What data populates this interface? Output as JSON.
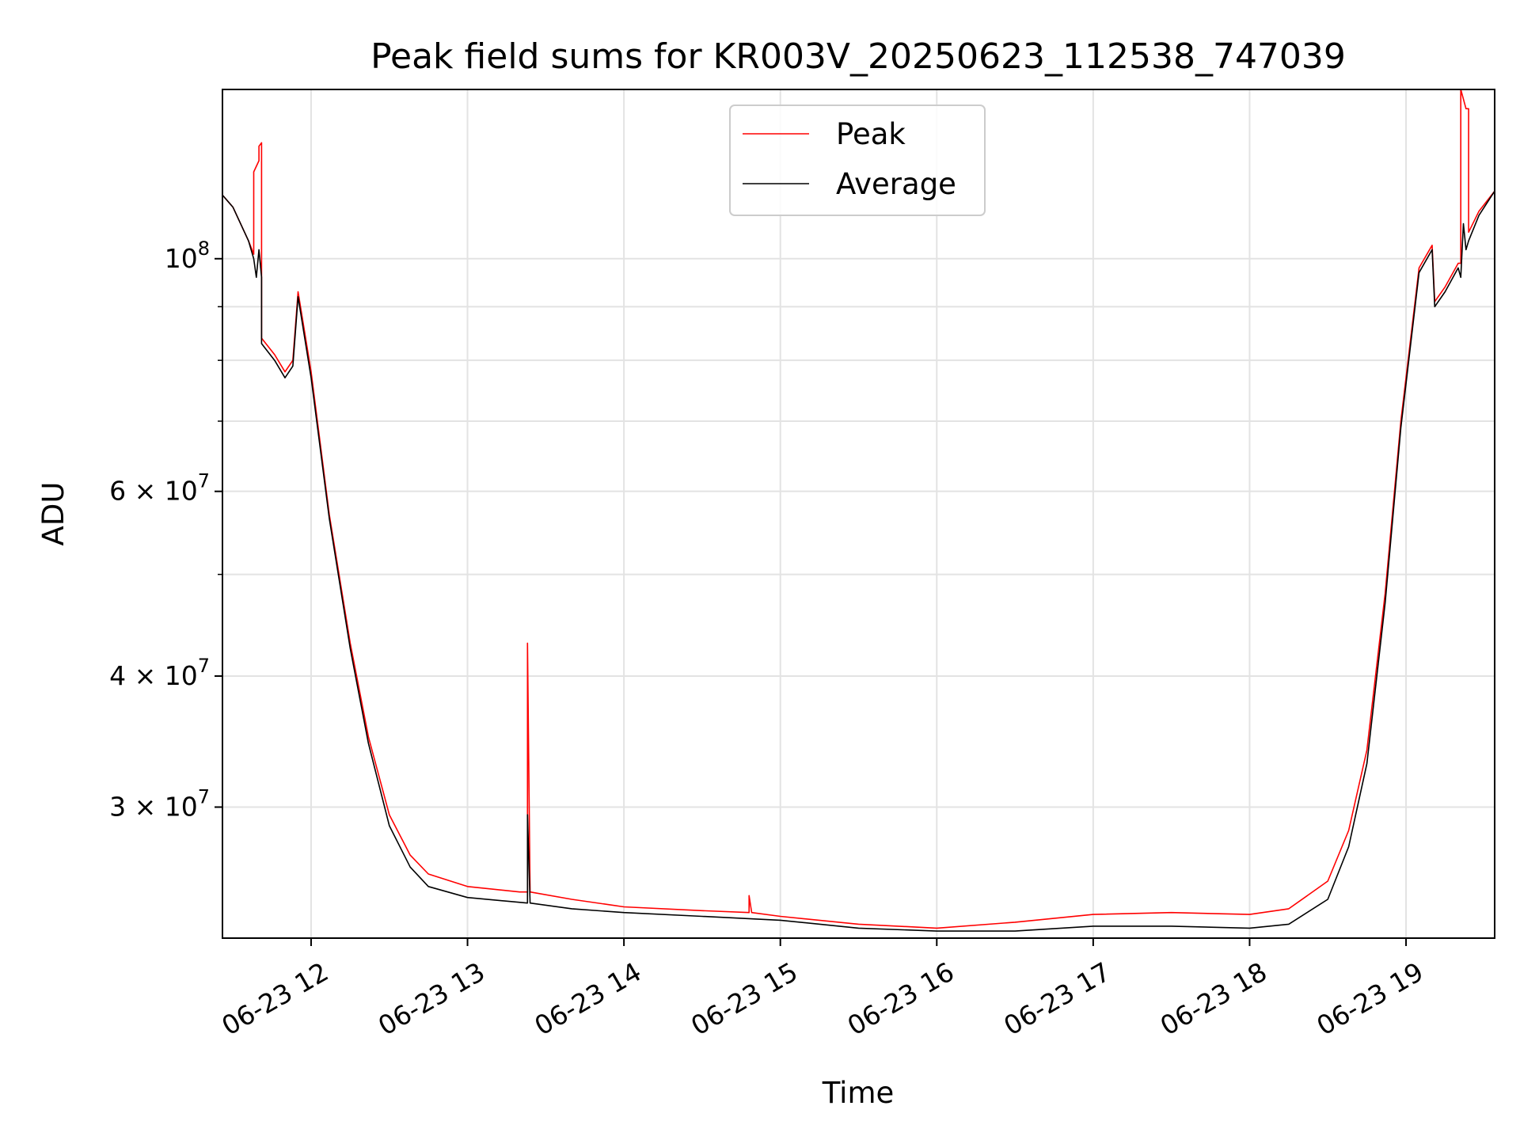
{
  "chart_data": {
    "type": "line",
    "title": "Peak field sums for KR003V_20250623_112538_747039",
    "xlabel": "Time",
    "ylabel": "ADU",
    "yscale": "log",
    "xlim": [
      "06-23 11:26",
      "06-23 19:34"
    ],
    "ylim": [
      22500000,
      145000000
    ],
    "x_ticks": [
      {
        "value": "06-23 12:00",
        "label": "06-23 12"
      },
      {
        "value": "06-23 13:00",
        "label": "06-23 13"
      },
      {
        "value": "06-23 14:00",
        "label": "06-23 14"
      },
      {
        "value": "06-23 15:00",
        "label": "06-23 15"
      },
      {
        "value": "06-23 16:00",
        "label": "06-23 16"
      },
      {
        "value": "06-23 17:00",
        "label": "06-23 17"
      },
      {
        "value": "06-23 18:00",
        "label": "06-23 18"
      },
      {
        "value": "06-23 19:00",
        "label": "06-23 19"
      }
    ],
    "y_major_ticks": [
      {
        "value": 100000000,
        "base": "10",
        "exp": "8"
      },
      {
        "value": 60000000,
        "base": "6 × 10",
        "exp": "7"
      },
      {
        "value": 40000000,
        "base": "4 × 10",
        "exp": "7"
      },
      {
        "value": 30000000,
        "base": "3 × 10",
        "exp": "7"
      }
    ],
    "y_minor_ticks": [
      90000000,
      80000000,
      70000000,
      50000000
    ],
    "grid": true,
    "legend_position": "upper center",
    "series": [
      {
        "name": "Peak",
        "color": "#ff0000",
        "points": [
          [
            "06-23 11:26",
            115000000
          ],
          [
            "06-23 11:30",
            112000000
          ],
          [
            "06-23 11:36",
            104000000
          ],
          [
            "06-23 11:38",
            101000000
          ],
          [
            "06-23 11:38",
            121000000
          ],
          [
            "06-23 11:40",
            124000000
          ],
          [
            "06-23 11:40",
            128000000
          ],
          [
            "06-23 11:41",
            129000000
          ],
          [
            "06-23 11:41",
            84000000
          ],
          [
            "06-23 11:46",
            81000000
          ],
          [
            "06-23 11:50",
            78000000
          ],
          [
            "06-23 11:53",
            80000000
          ],
          [
            "06-23 11:55",
            93000000
          ],
          [
            "06-23 12:00",
            78000000
          ],
          [
            "06-23 12:07",
            57000000
          ],
          [
            "06-23 12:15",
            43000000
          ],
          [
            "06-23 12:22",
            35000000
          ],
          [
            "06-23 12:30",
            29500000
          ],
          [
            "06-23 12:38",
            27000000
          ],
          [
            "06-23 12:45",
            25900000
          ],
          [
            "06-23 13:00",
            25200000
          ],
          [
            "06-23 13:20",
            24900000
          ],
          [
            "06-23 13:23",
            24900000
          ],
          [
            "06-23 13:23",
            43000000
          ],
          [
            "06-23 13:24",
            24900000
          ],
          [
            "06-23 13:40",
            24500000
          ],
          [
            "06-23 14:00",
            24100000
          ],
          [
            "06-23 14:30",
            23900000
          ],
          [
            "06-23 14:48",
            23800000
          ],
          [
            "06-23 14:48",
            24700000
          ],
          [
            "06-23 14:49",
            23800000
          ],
          [
            "06-23 15:00",
            23600000
          ],
          [
            "06-23 15:30",
            23200000
          ],
          [
            "06-23 16:00",
            23000000
          ],
          [
            "06-23 16:30",
            23300000
          ],
          [
            "06-23 17:00",
            23700000
          ],
          [
            "06-23 17:30",
            23800000
          ],
          [
            "06-23 18:00",
            23700000
          ],
          [
            "06-23 18:15",
            24000000
          ],
          [
            "06-23 18:30",
            25500000
          ],
          [
            "06-23 18:38",
            28500000
          ],
          [
            "06-23 18:45",
            34000000
          ],
          [
            "06-23 18:52",
            48000000
          ],
          [
            "06-23 18:58",
            70000000
          ],
          [
            "06-23 19:05",
            98000000
          ],
          [
            "06-23 19:10",
            103000000
          ],
          [
            "06-23 19:11",
            91000000
          ],
          [
            "06-23 19:15",
            94000000
          ],
          [
            "06-23 19:20",
            99000000
          ],
          [
            "06-23 19:21",
            99000000
          ],
          [
            "06-23 19:21",
            145000000
          ],
          [
            "06-23 19:23",
            139000000
          ],
          [
            "06-23 19:24",
            139000000
          ],
          [
            "06-23 19:24",
            106000000
          ],
          [
            "06-23 19:28",
            111000000
          ],
          [
            "06-23 19:34",
            116000000
          ]
        ]
      },
      {
        "name": "Average",
        "color": "#000000",
        "points": [
          [
            "06-23 11:26",
            115000000
          ],
          [
            "06-23 11:30",
            112000000
          ],
          [
            "06-23 11:36",
            104000000
          ],
          [
            "06-23 11:38",
            100000000
          ],
          [
            "06-23 11:39",
            96000000
          ],
          [
            "06-23 11:40",
            102000000
          ],
          [
            "06-23 11:41",
            96000000
          ],
          [
            "06-23 11:41",
            83000000
          ],
          [
            "06-23 11:46",
            80000000
          ],
          [
            "06-23 11:50",
            77000000
          ],
          [
            "06-23 11:53",
            79000000
          ],
          [
            "06-23 11:55",
            92000000
          ],
          [
            "06-23 12:00",
            77000000
          ],
          [
            "06-23 12:07",
            56500000
          ],
          [
            "06-23 12:15",
            42500000
          ],
          [
            "06-23 12:22",
            34500000
          ],
          [
            "06-23 12:30",
            28800000
          ],
          [
            "06-23 12:38",
            26300000
          ],
          [
            "06-23 12:45",
            25200000
          ],
          [
            "06-23 13:00",
            24600000
          ],
          [
            "06-23 13:23",
            24300000
          ],
          [
            "06-23 13:23",
            29500000
          ],
          [
            "06-23 13:24",
            24300000
          ],
          [
            "06-23 13:40",
            24000000
          ],
          [
            "06-23 14:00",
            23800000
          ],
          [
            "06-23 14:30",
            23600000
          ],
          [
            "06-23 15:00",
            23400000
          ],
          [
            "06-23 15:30",
            23000000
          ],
          [
            "06-23 16:00",
            22850000
          ],
          [
            "06-23 16:30",
            22850000
          ],
          [
            "06-23 17:00",
            23100000
          ],
          [
            "06-23 17:30",
            23100000
          ],
          [
            "06-23 18:00",
            23000000
          ],
          [
            "06-23 18:15",
            23200000
          ],
          [
            "06-23 18:30",
            24500000
          ],
          [
            "06-23 18:38",
            27500000
          ],
          [
            "06-23 18:45",
            33000000
          ],
          [
            "06-23 18:52",
            47000000
          ],
          [
            "06-23 18:58",
            69000000
          ],
          [
            "06-23 19:05",
            97000000
          ],
          [
            "06-23 19:10",
            102000000
          ],
          [
            "06-23 19:11",
            90000000
          ],
          [
            "06-23 19:15",
            93000000
          ],
          [
            "06-23 19:20",
            98000000
          ],
          [
            "06-23 19:21",
            96000000
          ],
          [
            "06-23 19:22",
            108000000
          ],
          [
            "06-23 19:23",
            102000000
          ],
          [
            "06-23 19:24",
            104000000
          ],
          [
            "06-23 19:28",
            110000000
          ],
          [
            "06-23 19:34",
            116000000
          ]
        ]
      }
    ]
  }
}
